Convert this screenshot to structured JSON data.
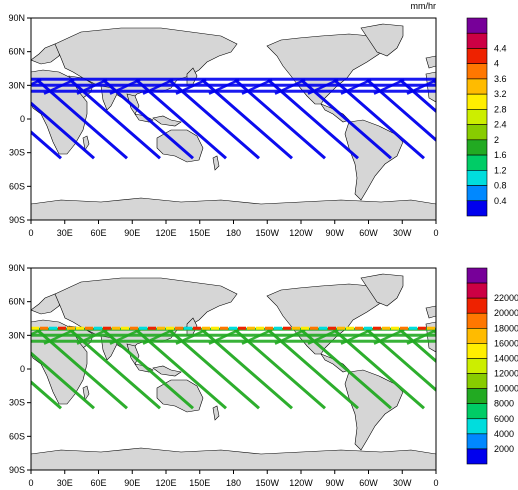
{
  "panels": [
    {
      "id": "top",
      "units_label": "mm/hr",
      "lat_labels": [
        "90N",
        "60N",
        "30N",
        "0",
        "30S",
        "60S",
        "90S"
      ],
      "lon_labels": [
        "0",
        "30E",
        "60E",
        "90E",
        "120E",
        "150E",
        "180",
        "150W",
        "120W",
        "90W",
        "60W",
        "30W",
        "0"
      ],
      "colorbar": {
        "labels": [
          "0.4",
          "0.8",
          "1.2",
          "1.6",
          "2",
          "2.4",
          "2.8",
          "3.2",
          "3.6",
          "4",
          "4.4"
        ],
        "colors": [
          "#0000ee",
          "#0088ff",
          "#00dddd",
          "#00cc66",
          "#22aa22",
          "#88cc00",
          "#ccee00",
          "#ffee00",
          "#ffbb00",
          "#ff7700",
          "#ee2200",
          "#cc0044",
          "#770099"
        ]
      }
    },
    {
      "id": "bottom",
      "units_label": "",
      "lat_labels": [
        "90N",
        "60N",
        "30N",
        "0",
        "30S",
        "60S",
        "90S"
      ],
      "lon_labels": [
        "0",
        "30E",
        "60E",
        "90E",
        "120E",
        "150E",
        "180",
        "150W",
        "120W",
        "90W",
        "60W",
        "30W",
        "0"
      ],
      "colorbar": {
        "labels": [
          "2000",
          "4000",
          "6000",
          "8000",
          "10000",
          "12000",
          "14000",
          "16000",
          "18000",
          "20000",
          "22000"
        ],
        "colors": [
          "#0000ee",
          "#0088ff",
          "#00dddd",
          "#00cc66",
          "#22aa22",
          "#88cc00",
          "#ccee00",
          "#ffee00",
          "#ffbb00",
          "#ff7700",
          "#ee2200",
          "#cc0044",
          "#770099"
        ]
      }
    }
  ],
  "colors": {
    "ocean": "#ffffff",
    "land": "#d6d6d6",
    "coast": "#000000",
    "swath_top": "#0000ee",
    "swath_bottom": "#22aa22"
  }
}
